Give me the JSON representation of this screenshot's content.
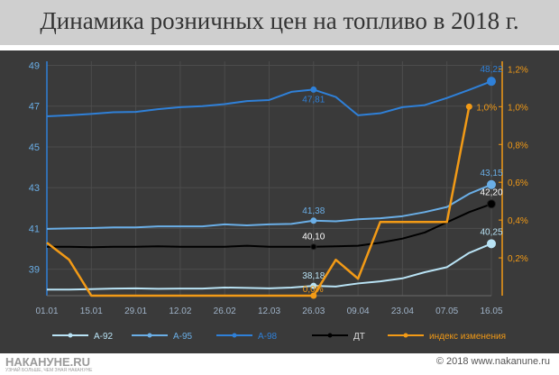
{
  "title": "Динамика розничных цен на топливо в 2018 г.",
  "copyright": "© 2018 www.nakanune.ru",
  "logo": {
    "text": "НАКАНУНЕ.RU",
    "subtext": "УЗНАЙ БОЛЬШЕ, ЧЕМ ЗНАЯ НАКАНУНЕ"
  },
  "colors": {
    "a92": "#b9e3f5",
    "a95": "#6aaee6",
    "a98": "#2f80d8",
    "dt": "#000000",
    "index": "#f29a16",
    "panel": "#3a3a3a",
    "title_bar": "#cfcfcf"
  },
  "chart_data": {
    "type": "line",
    "title": "Динамика розничных цен на топливо в 2018 г.",
    "x_tick_labels": [
      "01.01",
      "15.01",
      "29.01",
      "12.02",
      "26.02",
      "12.03",
      "26.03",
      "09.04",
      "23.04",
      "07.05",
      "16.05"
    ],
    "x_positions": [
      0,
      1,
      2,
      3,
      4,
      5,
      6,
      7,
      8,
      9,
      10
    ],
    "y_left": {
      "ticks": [
        39,
        41,
        43,
        45,
        47,
        49
      ],
      "min": 37.7,
      "max": 49.2
    },
    "y_right": {
      "ticks": [
        "0,2%",
        "0,4%",
        "0,6%",
        "0,8%",
        "1,0%",
        "1,2%"
      ],
      "tick_values": [
        0.2,
        0.4,
        0.6,
        0.8,
        1.0,
        1.2
      ],
      "min": 0,
      "max": 1.24
    },
    "grid": true,
    "legend_position": "bottom",
    "series": [
      {
        "name": "А-92",
        "axis": "left",
        "color_key": "a92",
        "x": [
          0,
          0.5,
          1,
          1.5,
          2,
          2.5,
          3,
          3.5,
          4,
          4.5,
          5,
          5.5,
          6,
          6.5,
          7,
          7.5,
          8,
          8.5,
          9,
          9.5,
          10
        ],
        "y": [
          38.0,
          38.0,
          38.02,
          38.05,
          38.06,
          38.04,
          38.05,
          38.05,
          38.1,
          38.08,
          38.06,
          38.1,
          38.18,
          38.15,
          38.3,
          38.4,
          38.55,
          38.85,
          39.1,
          39.8,
          40.25
        ],
        "labels": [
          {
            "index": 12,
            "text": "38,18"
          },
          {
            "index": 20,
            "text": "40,25"
          }
        ]
      },
      {
        "name": "А-95",
        "axis": "left",
        "color_key": "a95",
        "x": [
          0,
          0.5,
          1,
          1.5,
          2,
          2.5,
          3,
          3.5,
          4,
          4.5,
          5,
          5.5,
          6,
          6.5,
          7,
          7.5,
          8,
          8.5,
          9,
          9.5,
          10
        ],
        "y": [
          40.98,
          41.0,
          41.02,
          41.05,
          41.05,
          41.1,
          41.1,
          41.1,
          41.2,
          41.15,
          41.2,
          41.22,
          41.38,
          41.35,
          41.45,
          41.5,
          41.6,
          41.8,
          42.05,
          42.7,
          43.15
        ],
        "labels": [
          {
            "index": 12,
            "text": "41,38"
          },
          {
            "index": 20,
            "text": "43,15"
          }
        ]
      },
      {
        "name": "А-98",
        "axis": "left",
        "color_key": "a98",
        "x": [
          0,
          0.5,
          1,
          1.5,
          2,
          2.5,
          3,
          3.5,
          4,
          4.5,
          5,
          5.5,
          6,
          6.5,
          7,
          7.5,
          8,
          8.5,
          9,
          9.5,
          10
        ],
        "y": [
          46.5,
          46.55,
          46.62,
          46.7,
          46.72,
          46.85,
          46.95,
          47.0,
          47.1,
          47.25,
          47.3,
          47.7,
          47.81,
          47.45,
          46.55,
          46.65,
          46.95,
          47.05,
          47.4,
          47.8,
          48.22
        ],
        "labels": [
          {
            "index": 12,
            "text": "47,81"
          },
          {
            "index": 20,
            "text": "48,22"
          }
        ]
      },
      {
        "name": "ДТ",
        "axis": "left",
        "color_key": "dt",
        "x": [
          0,
          0.5,
          1,
          1.5,
          2,
          2.5,
          3,
          3.5,
          4,
          4.5,
          5,
          5.5,
          6,
          6.5,
          7,
          7.5,
          8,
          8.5,
          9,
          9.5,
          10
        ],
        "y": [
          40.1,
          40.1,
          40.08,
          40.1,
          40.1,
          40.12,
          40.1,
          40.1,
          40.1,
          40.15,
          40.1,
          40.1,
          40.1,
          40.12,
          40.15,
          40.3,
          40.5,
          40.8,
          41.3,
          41.8,
          42.2
        ],
        "labels": [
          {
            "index": 12,
            "text": "40,10"
          },
          {
            "index": 20,
            "text": "42,20"
          }
        ]
      },
      {
        "name": "индекс изменения",
        "axis": "right",
        "color_key": "index",
        "x": [
          0,
          0.5,
          1,
          2,
          3,
          4,
          5,
          6,
          6.5,
          7,
          7.5,
          8,
          8.5,
          9,
          9.5
        ],
        "y": [
          0.28,
          0.19,
          0.0,
          0.0,
          0.0,
          0.0,
          0.0,
          0.0,
          0.19,
          0.09,
          0.39,
          0.39,
          0.39,
          0.39,
          1.0
        ],
        "labels": [
          {
            "index": 7,
            "text": "0,0%"
          },
          {
            "index": 14,
            "text": "1,0%"
          }
        ]
      }
    ]
  }
}
